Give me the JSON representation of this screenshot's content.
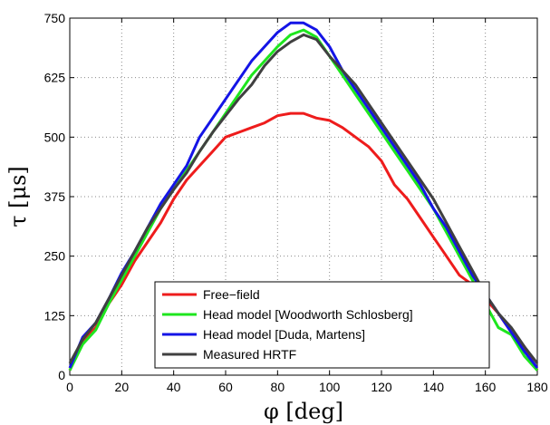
{
  "chart_data": {
    "type": "line",
    "xlabel": "φ [deg]",
    "ylabel": "τ [μs]",
    "xlim": [
      0,
      180
    ],
    "ylim": [
      0,
      750
    ],
    "xticks": [
      0,
      20,
      40,
      60,
      80,
      100,
      120,
      140,
      160,
      180
    ],
    "yticks": [
      0,
      125,
      250,
      375,
      500,
      625,
      750
    ],
    "grid": true,
    "legend_position": "bottom-center",
    "series": [
      {
        "name": "Free−field",
        "color": "#ee1c1c",
        "x": [
          0,
          5,
          10,
          15,
          20,
          25,
          30,
          35,
          40,
          45,
          50,
          55,
          60,
          65,
          70,
          75,
          80,
          85,
          90,
          95,
          100,
          105,
          110,
          115,
          120,
          125,
          130,
          135,
          140,
          145,
          150,
          155,
          160,
          165,
          170,
          175,
          180
        ],
        "y": [
          10,
          70,
          100,
          150,
          190,
          240,
          280,
          320,
          370,
          410,
          440,
          470,
          500,
          510,
          520,
          530,
          545,
          550,
          550,
          540,
          535,
          520,
          500,
          480,
          450,
          400,
          370,
          330,
          290,
          250,
          210,
          190,
          160,
          130,
          90,
          60,
          10
        ]
      },
      {
        "name": "Head model [Woodworth Schlosberg]",
        "color": "#1ee61e",
        "x": [
          0,
          5,
          10,
          15,
          20,
          25,
          30,
          35,
          40,
          45,
          50,
          55,
          60,
          65,
          70,
          75,
          80,
          85,
          90,
          95,
          100,
          105,
          110,
          115,
          120,
          125,
          130,
          135,
          140,
          145,
          150,
          155,
          160,
          165,
          170,
          175,
          180
        ],
        "y": [
          10,
          65,
          95,
          150,
          200,
          250,
          300,
          350,
          390,
          430,
          470,
          510,
          550,
          590,
          630,
          660,
          690,
          715,
          725,
          710,
          670,
          630,
          590,
          550,
          510,
          470,
          430,
          390,
          350,
          300,
          250,
          200,
          150,
          100,
          85,
          40,
          10
        ]
      },
      {
        "name": "Head model [Duda, Martens]",
        "color": "#1414e6",
        "x": [
          0,
          5,
          10,
          15,
          20,
          25,
          30,
          35,
          40,
          45,
          50,
          55,
          60,
          65,
          70,
          75,
          80,
          85,
          90,
          95,
          100,
          105,
          110,
          115,
          120,
          125,
          130,
          135,
          140,
          145,
          150,
          155,
          160,
          165,
          170,
          175,
          180
        ],
        "y": [
          15,
          80,
          110,
          160,
          215,
          260,
          310,
          360,
          400,
          440,
          500,
          540,
          580,
          620,
          660,
          690,
          720,
          740,
          740,
          725,
          690,
          640,
          600,
          560,
          520,
          480,
          440,
          400,
          350,
          310,
          260,
          210,
          170,
          130,
          90,
          50,
          15
        ]
      },
      {
        "name": "Measured HRTF",
        "color": "#404040",
        "x": [
          0,
          5,
          10,
          15,
          20,
          25,
          30,
          35,
          40,
          45,
          50,
          55,
          60,
          65,
          70,
          75,
          80,
          85,
          90,
          95,
          100,
          105,
          110,
          115,
          120,
          125,
          130,
          135,
          140,
          145,
          150,
          155,
          160,
          165,
          170,
          175,
          180
        ],
        "y": [
          25,
          75,
          110,
          160,
          210,
          260,
          310,
          350,
          390,
          425,
          470,
          510,
          545,
          580,
          610,
          650,
          680,
          700,
          715,
          705,
          670,
          640,
          610,
          570,
          530,
          490,
          450,
          410,
          370,
          320,
          270,
          220,
          170,
          130,
          100,
          60,
          25
        ]
      }
    ]
  }
}
